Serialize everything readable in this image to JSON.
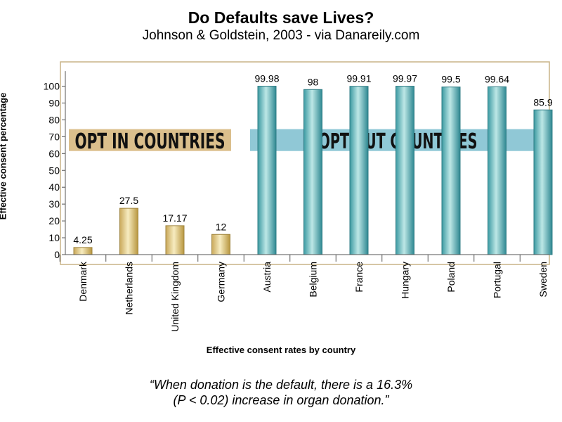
{
  "header": {
    "title": "Do Defaults save Lives?",
    "subtitle": "Johnson & Goldstein, 2003 - via Danareily.com"
  },
  "colors": {
    "opt_in_bar": "#e2cd8e",
    "opt_out_bar": "#7ec6c8",
    "opt_in_band": "#d9bc86",
    "opt_out_band": "#78bccd",
    "plot_border": "#c9b487"
  },
  "chart_data": {
    "type": "bar",
    "title": "",
    "xlabel": "Effective consent rates by country",
    "ylabel": "Effective consent percentage",
    "ylim": [
      0,
      110
    ],
    "yticks": [
      0,
      10,
      20,
      30,
      40,
      50,
      60,
      70,
      80,
      90,
      100
    ],
    "categories": [
      "Denmark",
      "Netherlands",
      "United Kingdom",
      "Germany",
      "Austria",
      "Belgium",
      "France",
      "Hungary",
      "Poland",
      "Portugal",
      "Sweden"
    ],
    "values": [
      4.25,
      27.5,
      17.17,
      12,
      99.98,
      98,
      99.91,
      99.97,
      99.5,
      99.64,
      85.9
    ],
    "value_labels": [
      "4.25",
      "27.5",
      "17.17",
      "12",
      "99.98",
      "98",
      "99.91",
      "99.97",
      "99.5",
      "99.64",
      "85.9"
    ],
    "groups": [
      {
        "name": "OPT IN COUNTRIES",
        "count": 4
      },
      {
        "name": "OPT OUT  COUNTRIES",
        "count": 7
      }
    ],
    "grid": false
  },
  "quote": {
    "line1": "“When donation is the default, there is a 16.3%",
    "line2": "(P < 0.02) increase in organ donation.”"
  }
}
